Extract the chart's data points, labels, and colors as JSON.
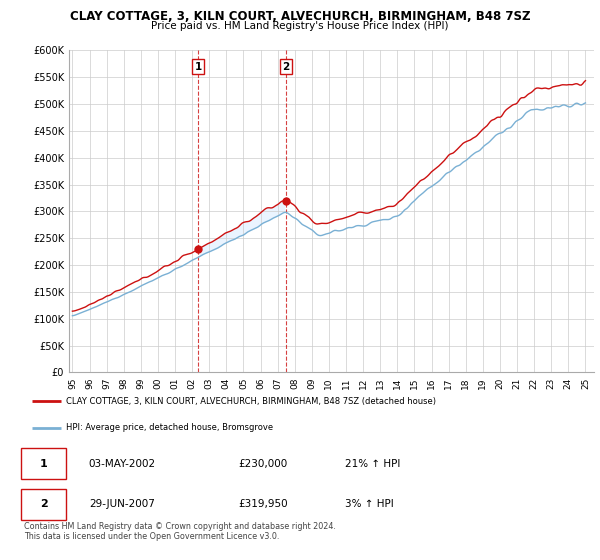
{
  "title": "CLAY COTTAGE, 3, KILN COURT, ALVECHURCH, BIRMINGHAM, B48 7SZ",
  "subtitle": "Price paid vs. HM Land Registry's House Price Index (HPI)",
  "ylim": [
    0,
    600000
  ],
  "yticks": [
    0,
    50000,
    100000,
    150000,
    200000,
    250000,
    300000,
    350000,
    400000,
    450000,
    500000,
    550000,
    600000
  ],
  "ytick_labels": [
    "£0",
    "£50K",
    "£100K",
    "£150K",
    "£200K",
    "£250K",
    "£300K",
    "£350K",
    "£400K",
    "£450K",
    "£500K",
    "£550K",
    "£600K"
  ],
  "hpi_color": "#7ab0d4",
  "price_color": "#cc1111",
  "fill_color": "#ddeeff",
  "vline_color": "#cc1111",
  "purchase1_year": 2002.35,
  "purchase1_price": 230000,
  "purchase2_year": 2007.49,
  "purchase2_price": 319950,
  "legend_line1": "CLAY COTTAGE, 3, KILN COURT, ALVECHURCH, BIRMINGHAM, B48 7SZ (detached house)",
  "legend_line2": "HPI: Average price, detached house, Bromsgrove",
  "footnote": "Contains HM Land Registry data © Crown copyright and database right 2024.\nThis data is licensed under the Open Government Licence v3.0."
}
